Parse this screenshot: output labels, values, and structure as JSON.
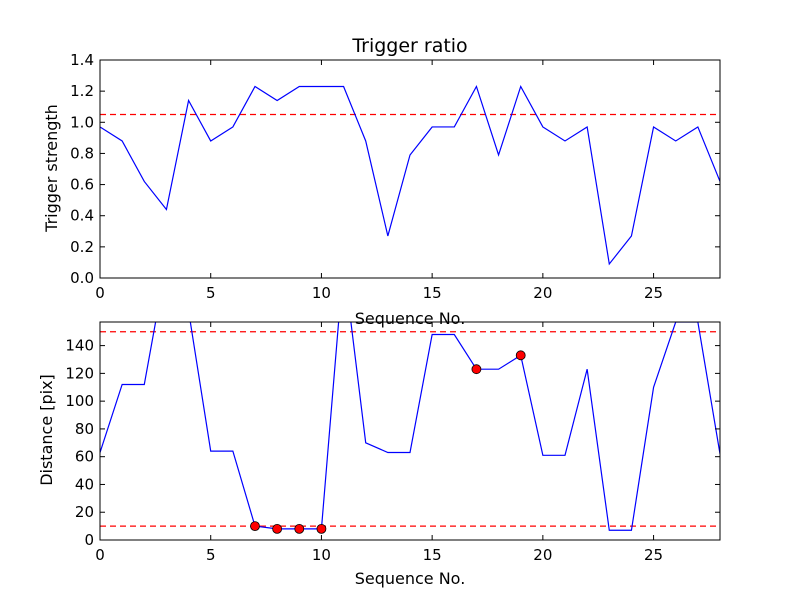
{
  "chart_data": [
    {
      "type": "line",
      "title": "Trigger ratio",
      "xlabel": "Sequence No.",
      "ylabel": "Trigger strength",
      "xlim": [
        0,
        28
      ],
      "ylim": [
        0,
        1.4
      ],
      "xticks": [
        0,
        5,
        10,
        15,
        20,
        25
      ],
      "yticks": [
        0.0,
        0.2,
        0.4,
        0.6,
        0.8,
        1.0,
        1.2,
        1.4
      ],
      "ytick_labels": [
        "0.0",
        "0.2",
        "0.4",
        "0.6",
        "0.8",
        "1.0",
        "1.2",
        "1.4"
      ],
      "grid": false,
      "series": [
        {
          "color": "#0000ff",
          "style": "solid",
          "x": [
            0,
            1,
            2,
            3,
            4,
            5,
            6,
            7,
            8,
            9,
            10,
            11,
            12,
            13,
            14,
            15,
            16,
            17,
            18,
            19,
            20,
            21,
            22,
            23,
            24,
            25,
            26,
            27,
            28
          ],
          "y": [
            0.97,
            0.88,
            0.62,
            0.44,
            1.14,
            0.88,
            0.97,
            1.23,
            1.14,
            1.23,
            1.23,
            1.23,
            0.88,
            0.27,
            0.79,
            0.97,
            0.97,
            1.23,
            0.79,
            1.23,
            0.97,
            0.88,
            0.97,
            0.09,
            0.27,
            0.97,
            0.88,
            0.97,
            0.62
          ]
        }
      ],
      "hlines": [
        {
          "y": 1.05,
          "color": "#ff0000",
          "style": "dashed"
        }
      ]
    },
    {
      "type": "line",
      "title": "",
      "xlabel": "Sequence No.",
      "ylabel": "Distance [pix]",
      "xlim": [
        0,
        28
      ],
      "ylim": [
        0,
        157
      ],
      "xticks": [
        0,
        5,
        10,
        15,
        20,
        25
      ],
      "yticks": [
        0,
        20,
        40,
        60,
        80,
        100,
        120,
        140
      ],
      "ytick_labels": [
        "0",
        "20",
        "40",
        "60",
        "80",
        "100",
        "120",
        "140"
      ],
      "grid": false,
      "series": [
        {
          "color": "#0000ff",
          "style": "solid",
          "x": [
            0,
            1,
            2,
            3,
            4,
            5,
            6,
            7,
            8,
            9,
            10,
            11,
            12,
            13,
            14,
            15,
            16,
            17,
            18,
            19,
            20,
            21,
            22,
            23,
            24,
            25,
            26,
            27,
            28
          ],
          "y": [
            63,
            112,
            112,
            200,
            165,
            64,
            64,
            10,
            8,
            8,
            8,
            200,
            70,
            63,
            63,
            148,
            148,
            123,
            123,
            133,
            61,
            61,
            123,
            7,
            7,
            110,
            157,
            157,
            62
          ]
        },
        {
          "color": "#ff0000",
          "style": "markers",
          "x": [
            7,
            8,
            9,
            10,
            17,
            19
          ],
          "y": [
            10,
            8,
            8,
            8,
            123,
            133
          ]
        }
      ],
      "hlines": [
        {
          "y": 150,
          "color": "#ff0000",
          "style": "dashed"
        },
        {
          "y": 10,
          "color": "#ff0000",
          "style": "dashed"
        }
      ]
    }
  ]
}
